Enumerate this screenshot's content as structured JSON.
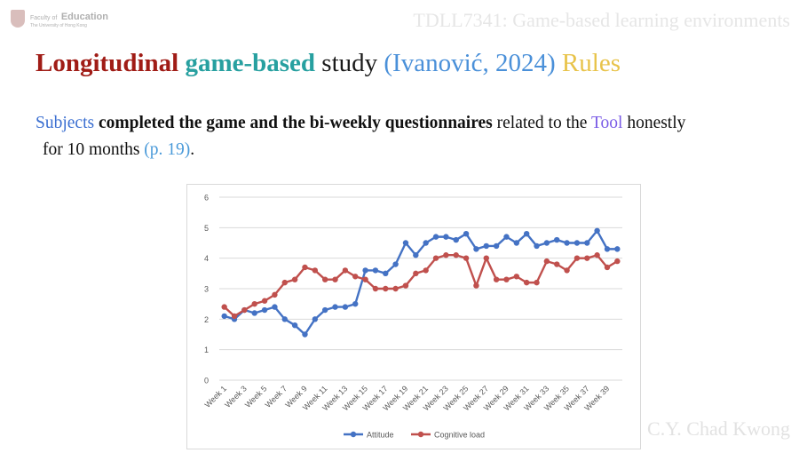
{
  "header": {
    "logo_small": "Faculty of",
    "logo_big": "Education",
    "logo_sub": "The University of Hong Kong",
    "course": "TDLL7341: Game-based learning environments"
  },
  "slide": {
    "title_parts": [
      "Longitudinal",
      "game-based",
      "study",
      "(Ivanović, 2024)",
      "Rules"
    ],
    "body": {
      "subjects": "Subjects",
      "bold": "completed the game and the bi-weekly questionnaires",
      "mid": "related to the",
      "tool": "Tool",
      "after": "honestly",
      "line2": "for 10 months",
      "ref": "(p. 19)",
      "period": "."
    }
  },
  "author": "C.Y. Chad Kwong",
  "chart_data": {
    "type": "line",
    "x": [
      "Week 1",
      "Week 2",
      "Week 3",
      "Week 4",
      "Week 5",
      "Week 6",
      "Week 7",
      "Week 8",
      "Week 9",
      "Week 10",
      "Week 11",
      "Week 12",
      "Week 13",
      "Week 14",
      "Week 15",
      "Week 16",
      "Week 17",
      "Week 18",
      "Week 19",
      "Week 20",
      "Week 21",
      "Week 22",
      "Week 23",
      "Week 24",
      "Week 25",
      "Week 26",
      "Week 27",
      "Week 28",
      "Week 29",
      "Week 30",
      "Week 31",
      "Week 32",
      "Week 33",
      "Week 34",
      "Week 35",
      "Week 36",
      "Week 37",
      "Week 38",
      "Week 39",
      "Week 40"
    ],
    "x_tick_labels": [
      "Week 1",
      "Week 3",
      "Week 5",
      "Week 7",
      "Week 9",
      "Week 11",
      "Week 13",
      "Week 15",
      "Week 17",
      "Week 19",
      "Week 21",
      "Week 23",
      "Week 25",
      "Week 27",
      "Week 29",
      "Week 31",
      "Week 33",
      "Week 35",
      "Week 37",
      "Week 39"
    ],
    "yticks": [
      "0",
      "1",
      "2",
      "3",
      "4",
      "5",
      "6"
    ],
    "ylim": [
      0,
      6
    ],
    "grid": "horizontal",
    "legend": "bottom",
    "series": [
      {
        "name": "Attitude",
        "color": "#4472c4",
        "values": [
          2.1,
          2.0,
          2.3,
          2.2,
          2.3,
          2.4,
          2.0,
          1.8,
          1.5,
          2.0,
          2.3,
          2.4,
          2.4,
          2.5,
          3.6,
          3.6,
          3.5,
          3.8,
          4.5,
          4.1,
          4.5,
          4.7,
          4.7,
          4.6,
          4.8,
          4.3,
          4.4,
          4.4,
          4.7,
          4.5,
          4.8,
          4.4,
          4.5,
          4.6,
          4.5,
          4.5,
          4.5,
          4.9,
          4.3,
          4.3
        ]
      },
      {
        "name": "Cognitive load",
        "color": "#c0504d",
        "values": [
          2.4,
          2.1,
          2.3,
          2.5,
          2.6,
          2.8,
          3.2,
          3.3,
          3.7,
          3.6,
          3.3,
          3.3,
          3.6,
          3.4,
          3.3,
          3.0,
          3.0,
          3.0,
          3.1,
          3.5,
          3.6,
          4.0,
          4.1,
          4.1,
          4.0,
          3.1,
          4.0,
          3.3,
          3.3,
          3.4,
          3.2,
          3.2,
          3.9,
          3.8,
          3.6,
          4.0,
          4.0,
          4.1,
          3.7,
          3.9
        ]
      }
    ]
  }
}
